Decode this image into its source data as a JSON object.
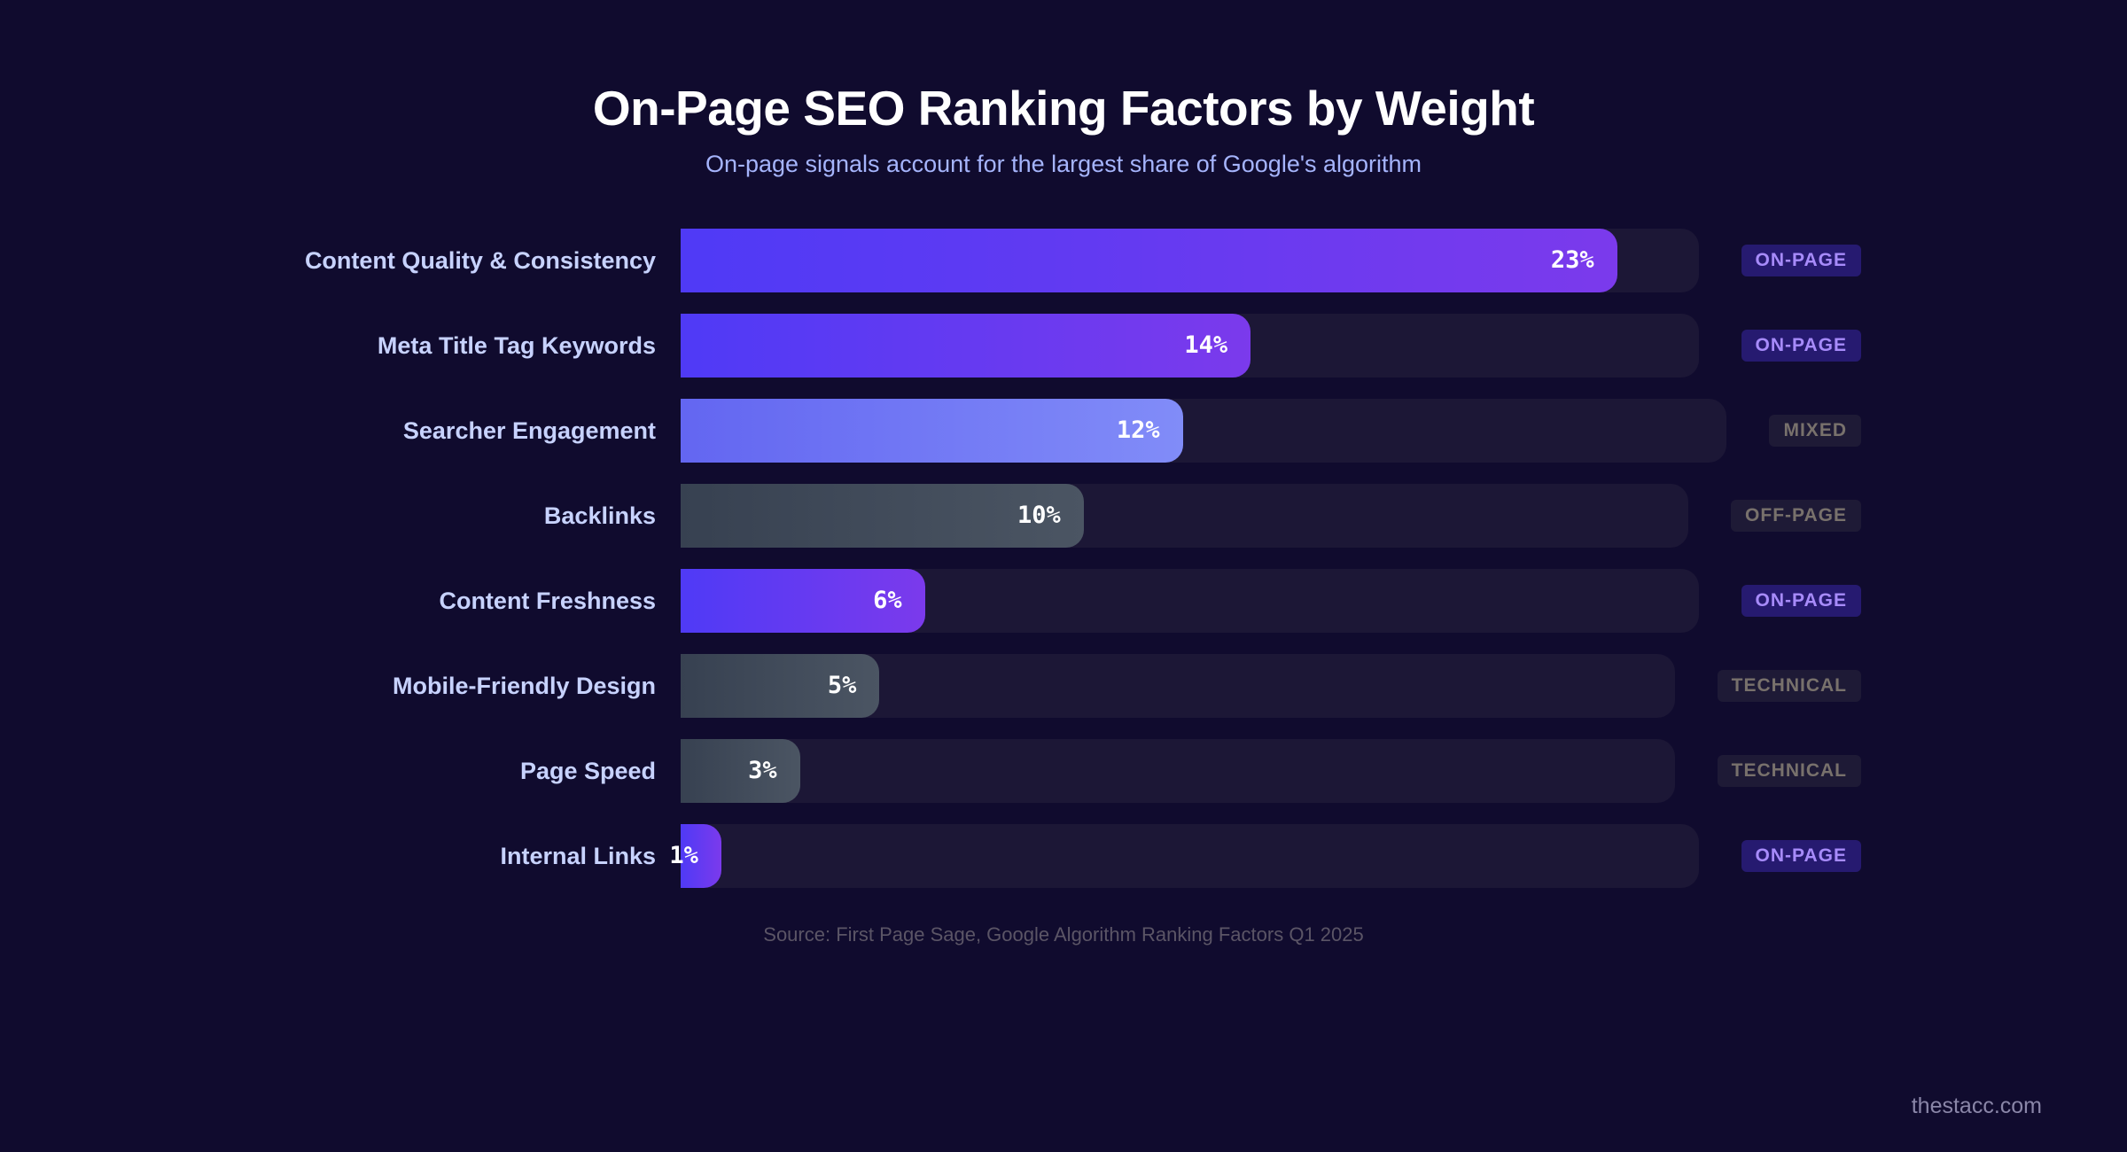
{
  "chart_data": {
    "type": "bar",
    "orientation": "horizontal",
    "title": "On-Page SEO Ranking Factors by Weight",
    "subtitle": "On-page signals account for the largest share of Google's algorithm",
    "xlim": [
      0,
      25
    ],
    "unit": "%",
    "grid": false,
    "bars": [
      {
        "category": "Content Quality & Consistency",
        "value": 23,
        "label": "23%",
        "badge": "ON-PAGE",
        "kind": "onpage"
      },
      {
        "category": "Meta Title Tag Keywords",
        "value": 14,
        "label": "14%",
        "badge": "ON-PAGE",
        "kind": "onpage"
      },
      {
        "category": "Searcher Engagement",
        "value": 12,
        "label": "12%",
        "badge": "MIXED",
        "kind": "mixed"
      },
      {
        "category": "Backlinks",
        "value": 10,
        "label": "10%",
        "badge": "OFF-PAGE",
        "kind": "neutral"
      },
      {
        "category": "Content Freshness",
        "value": 6,
        "label": "6%",
        "badge": "ON-PAGE",
        "kind": "onpage"
      },
      {
        "category": "Mobile-Friendly Design",
        "value": 5,
        "label": "5%",
        "badge": "TECHNICAL",
        "kind": "neutral"
      },
      {
        "category": "Page Speed",
        "value": 3,
        "label": "3%",
        "badge": "TECHNICAL",
        "kind": "neutral"
      },
      {
        "category": "Internal Links",
        "value": 1,
        "label": "1%",
        "badge": "ON-PAGE",
        "kind": "onpage"
      }
    ],
    "source": "Source: First Page Sage, Google Algorithm Ranking Factors Q1 2025"
  },
  "colors": {
    "onpage": [
      "#4f3af6",
      "#7b3aec"
    ],
    "mixed": [
      "#6366f1",
      "#818cf8"
    ],
    "neutral": [
      "#374151",
      "#4b5563"
    ],
    "badge_onpage_bg": "#261a70",
    "badge_onpage_text": "#a78bfa",
    "badge_neutral_bg": "#1e1a36",
    "badge_neutral_text": "#78716c"
  },
  "brand": "thestacc.com"
}
